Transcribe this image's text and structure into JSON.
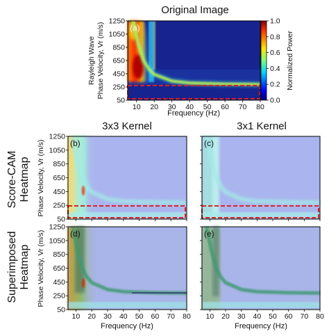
{
  "chart_data": [
    {
      "id": "a",
      "type": "heatmap",
      "title": "Original Image",
      "panel_label": "(a)",
      "xlabel": "Frequency (Hz)",
      "ylabel": "Phase Velocity, Vr (m/s)",
      "ylabel_prefix": "Rayleigh Wave",
      "xlim": [
        5,
        80
      ],
      "ylim": [
        50,
        1250
      ],
      "xticks": [
        10,
        20,
        30,
        40,
        50,
        60,
        70,
        80
      ],
      "yticks": [
        50,
        250,
        450,
        650,
        850,
        1050,
        1250
      ],
      "colorbar": {
        "label": "Normalized Power",
        "range": [
          0.0,
          1.0
        ],
        "ticks": [
          "0.0",
          "0.2",
          "0.4",
          "0.6",
          "0.8",
          "1.0"
        ],
        "colormap": "jet"
      },
      "highlight_box": {
        "x": [
          5,
          80
        ],
        "y": [
          55,
          250
        ],
        "color": "#e02020",
        "style": "dashed"
      },
      "description_points": {
        "dispersion_curve": [
          {
            "f": 8,
            "vr": 1250
          },
          {
            "f": 11,
            "vr": 900
          },
          {
            "f": 14,
            "vr": 650
          },
          {
            "f": 17,
            "vr": 520
          },
          {
            "f": 20,
            "vr": 440
          },
          {
            "f": 30,
            "vr": 340
          },
          {
            "f": 40,
            "vr": 310
          },
          {
            "f": 60,
            "vr": 295
          },
          {
            "f": 80,
            "vr": 290
          }
        ],
        "high_energy_region": {
          "f": [
            5,
            15
          ],
          "vr": [
            400,
            1250
          ]
        }
      }
    },
    {
      "id": "b",
      "type": "heatmap",
      "title": "3x3 Kernel",
      "panel_label": "(b)",
      "row_label": "Score-CAM Heatmap",
      "xlim": [
        5,
        80
      ],
      "ylim": [
        50,
        1250
      ],
      "xticks": [
        10,
        20,
        30,
        40,
        50,
        60,
        70,
        80
      ],
      "yticks": [
        50,
        250,
        450,
        650,
        850,
        1050,
        1250
      ],
      "ylabel": "Phase Velocity, Vr (m/s)",
      "show_xticklabels": false,
      "highlight_box": {
        "x": [
          5,
          80
        ],
        "y": [
          55,
          250
        ],
        "color": "#e02020",
        "style": "dashed"
      }
    },
    {
      "id": "c",
      "type": "heatmap",
      "title": "3x1 Kernel",
      "panel_label": "(c)",
      "xlim": [
        5,
        80
      ],
      "ylim": [
        50,
        1250
      ],
      "xticks": [
        10,
        20,
        30,
        40,
        50,
        60,
        70,
        80
      ],
      "show_xticklabels": false,
      "show_yticklabels": false,
      "highlight_box": {
        "x": [
          5,
          80
        ],
        "y": [
          55,
          250
        ],
        "color": "#e02020",
        "style": "dashed"
      }
    },
    {
      "id": "d",
      "type": "heatmap",
      "panel_label": "(d)",
      "row_label": "Superimposed Heatmap",
      "xlabel": "Frequency (Hz)",
      "ylabel": "Phase Velocity, Vr (m/s)",
      "xlim": [
        5,
        80
      ],
      "ylim": [
        50,
        1250
      ],
      "xticks": [
        10,
        20,
        30,
        40,
        50,
        60,
        70,
        80
      ],
      "yticks": [
        50,
        250,
        450,
        650,
        850,
        1050,
        1250
      ]
    },
    {
      "id": "e",
      "type": "heatmap",
      "panel_label": "(e)",
      "xlabel": "Frequency (Hz)",
      "xlim": [
        5,
        80
      ],
      "ylim": [
        50,
        1250
      ],
      "xticks": [
        10,
        20,
        30,
        40,
        50,
        60,
        70,
        80
      ],
      "show_yticklabels": false
    }
  ],
  "titles": {
    "original": "Original Image",
    "k33": "3x3 Kernel",
    "k31": "3x1 Kernel"
  },
  "row_labels": {
    "scorecam_1": "Score-CAM",
    "scorecam_2": "Heatmap",
    "superimposed_1": "Superimposed",
    "superimposed_2": "Heatmap"
  },
  "colors": {
    "background_dark_blue": "#16208c",
    "cam_blue": "#aab4ee",
    "cam_light_blue": "#8fd4f4",
    "cam_cyan": "#a8ecea",
    "highlight_red": "#e02020"
  }
}
